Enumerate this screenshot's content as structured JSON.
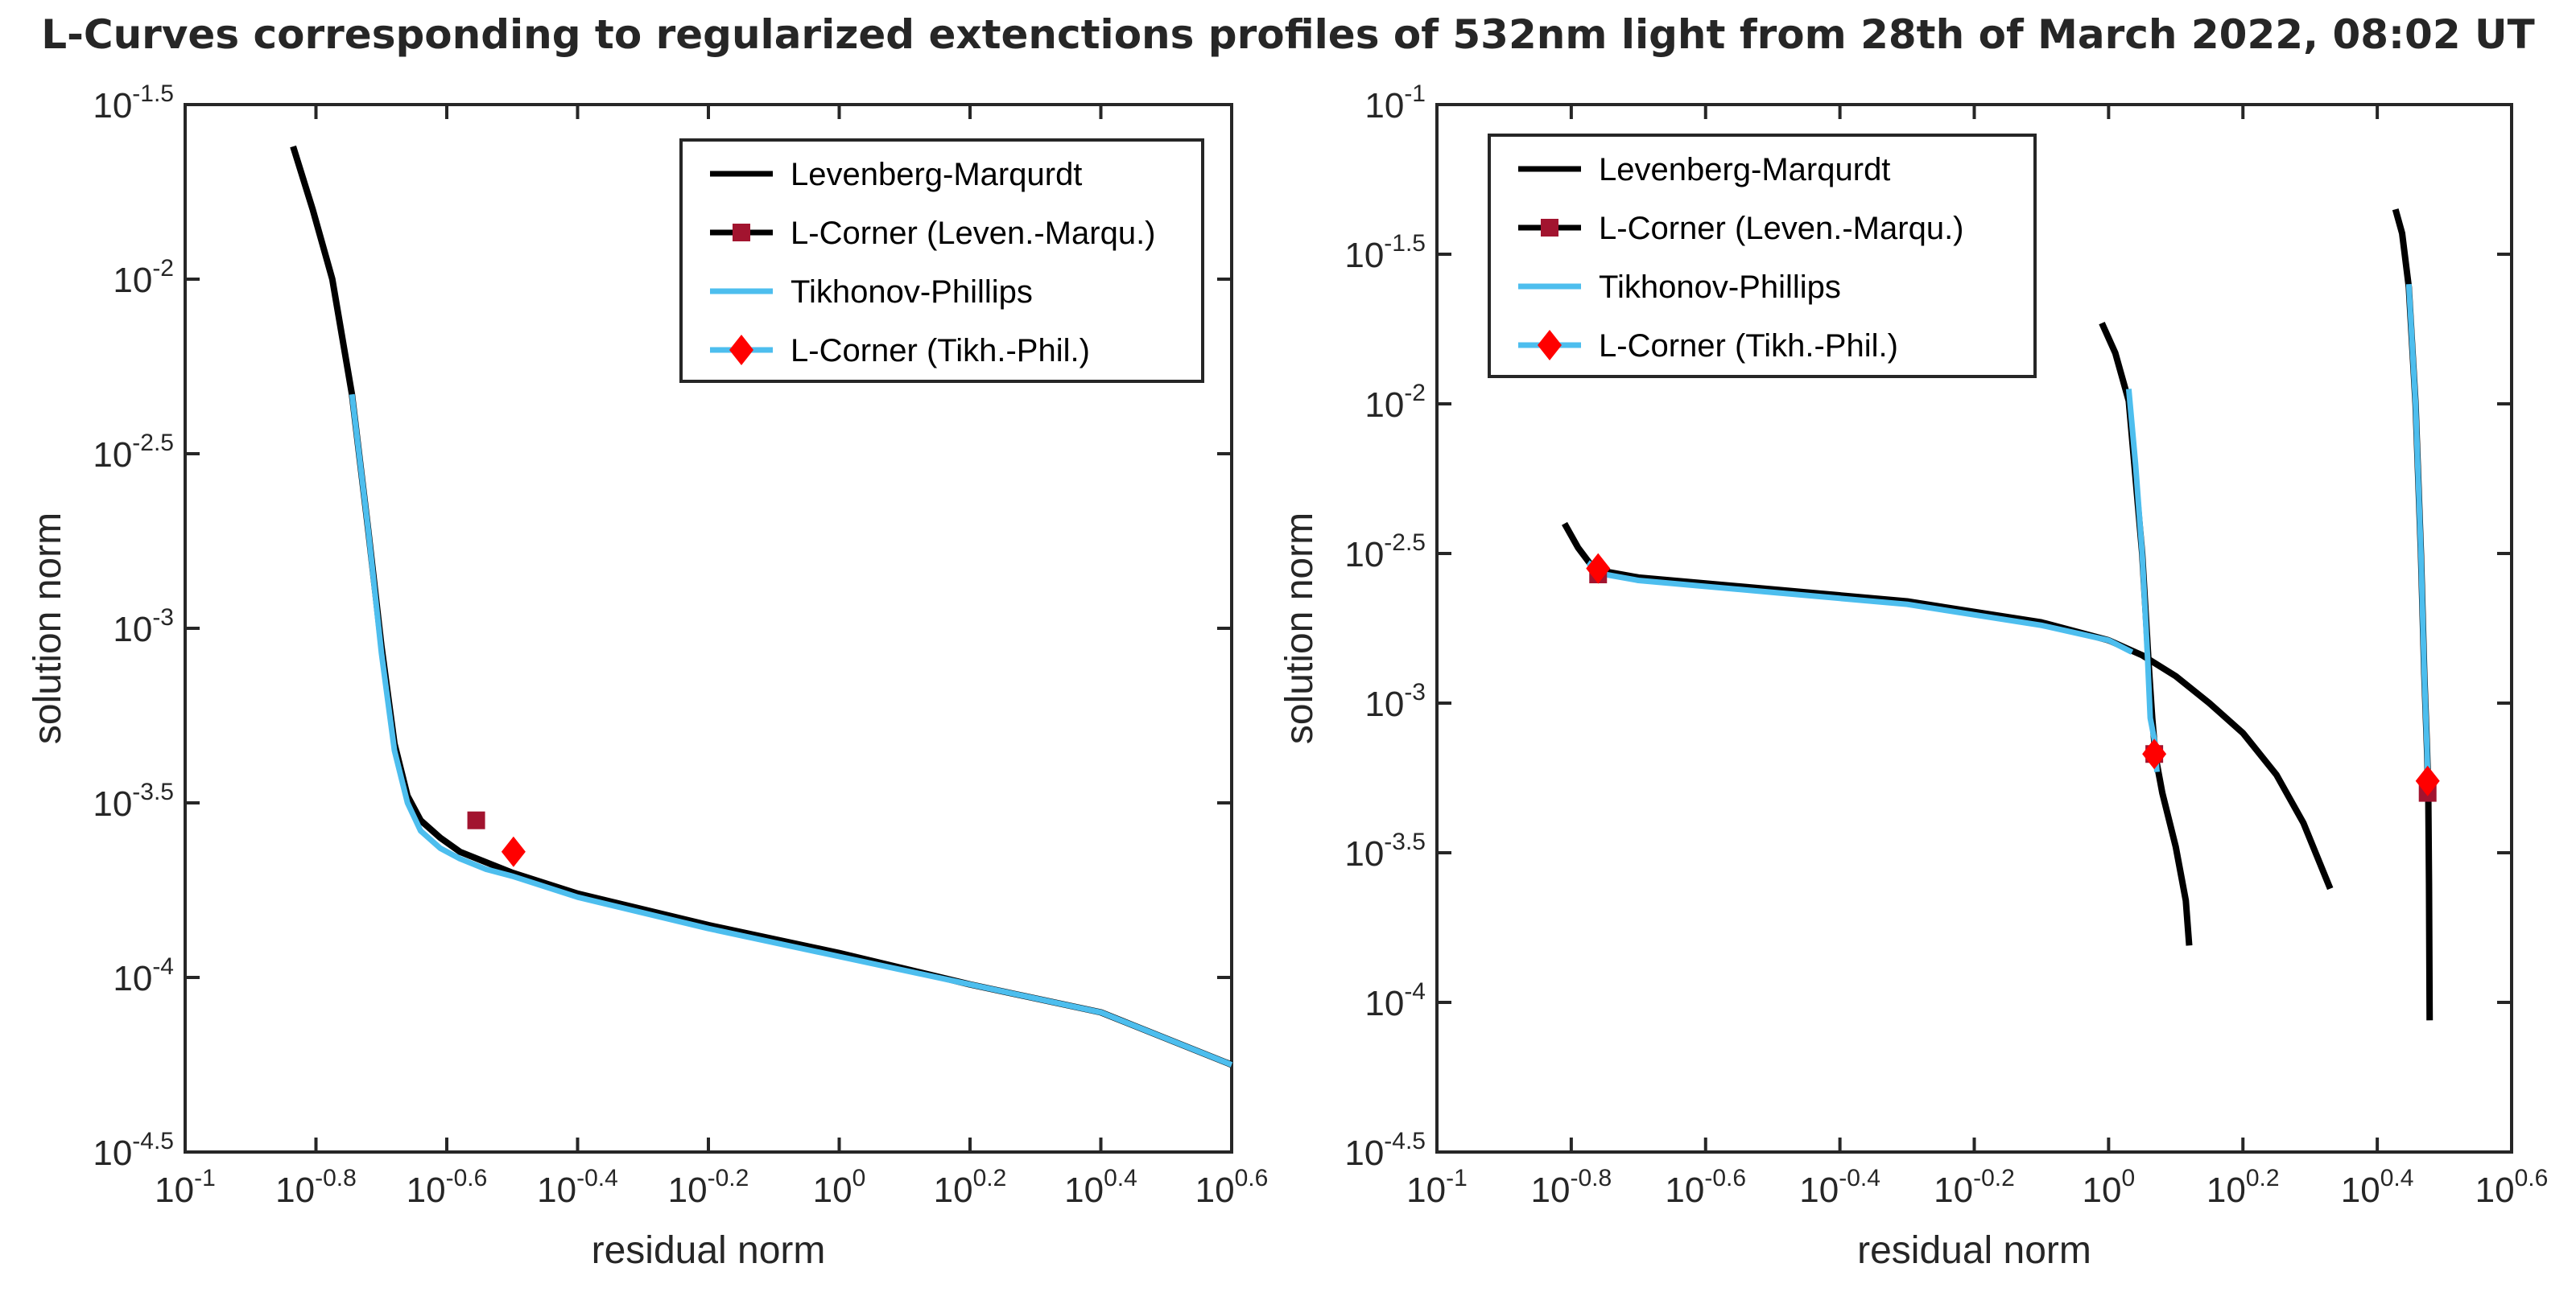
{
  "figure_title": "L-Curves corresponding to regularized extenctions profiles of 532nm light from 28th of March 2022, 08:02 UT",
  "colors": {
    "levenberg_marquardt": "#000000",
    "lcorner_levmar": "#a2142f",
    "tikhonov_phillips": "#4dbeee",
    "lcorner_tikh": "#ff0000",
    "axes": "#262626"
  },
  "chart_data": [
    {
      "type": "line",
      "title": "",
      "xlabel": "residual norm",
      "ylabel": "solution norm",
      "xscale": "log",
      "yscale": "log",
      "xlim_log10": [
        -1,
        0.6
      ],
      "ylim_log10": [
        -4.5,
        -1.5
      ],
      "xticks_log10": [
        -1,
        -0.8,
        -0.6,
        -0.4,
        -0.2,
        0,
        0.2,
        0.4,
        0.6
      ],
      "yticks_log10": [
        -4.5,
        -4,
        -3.5,
        -3,
        -2.5,
        -2,
        -1.5
      ],
      "xtick_labels": [
        {
          "base": "10",
          "exp": "-1"
        },
        {
          "base": "10",
          "exp": "-0.8"
        },
        {
          "base": "10",
          "exp": "-0.6"
        },
        {
          "base": "10",
          "exp": "-0.4"
        },
        {
          "base": "10",
          "exp": "-0.2"
        },
        {
          "base": "10",
          "exp": "0"
        },
        {
          "base": "10",
          "exp": "0.2"
        },
        {
          "base": "10",
          "exp": "0.4"
        },
        {
          "base": "10",
          "exp": "0.6"
        }
      ],
      "ytick_labels": [
        {
          "base": "10",
          "exp": "-4.5"
        },
        {
          "base": "10",
          "exp": "-4"
        },
        {
          "base": "10",
          "exp": "-3.5"
        },
        {
          "base": "10",
          "exp": "-3"
        },
        {
          "base": "10",
          "exp": "-2.5"
        },
        {
          "base": "10",
          "exp": "-2"
        },
        {
          "base": "10",
          "exp": "-1.5"
        }
      ],
      "legend": {
        "placement": "top-right",
        "entries": [
          {
            "label": "Levenberg-Marqurdt",
            "style": "line",
            "color": "#000000"
          },
          {
            "label": "L-Corner (Leven.-Marqu.)",
            "style": "line-square",
            "color": "#a2142f"
          },
          {
            "label": "Tikhonov-Phillips",
            "style": "line",
            "color": "#4dbeee"
          },
          {
            "label": "L-Corner (Tikh.-Phil.)",
            "style": "line-diamond",
            "color": "#ff0000"
          }
        ]
      },
      "series": [
        {
          "name": "Levenberg-Marqurdt",
          "color": "#000000",
          "curves": [
            [
              [
                -0.835,
                -1.62
              ],
              [
                -0.805,
                -1.8
              ],
              [
                -0.775,
                -2.0
              ],
              [
                -0.745,
                -2.33
              ],
              [
                -0.72,
                -2.72
              ],
              [
                -0.7,
                -3.05
              ],
              [
                -0.68,
                -3.33
              ],
              [
                -0.66,
                -3.48
              ],
              [
                -0.64,
                -3.55
              ],
              [
                -0.61,
                -3.6
              ],
              [
                -0.58,
                -3.64
              ],
              [
                -0.54,
                -3.67
              ],
              [
                -0.5,
                -3.7
              ],
              [
                -0.4,
                -3.76
              ],
              [
                -0.2,
                -3.85
              ],
              [
                0,
                -3.93
              ],
              [
                0.2,
                -4.02
              ],
              [
                0.4,
                -4.1
              ],
              [
                0.6,
                -4.25
              ]
            ]
          ]
        },
        {
          "name": "Tikhonov-Phillips",
          "color": "#4dbeee",
          "curves": [
            [
              [
                -0.745,
                -2.33
              ],
              [
                -0.72,
                -2.72
              ],
              [
                -0.7,
                -3.07
              ],
              [
                -0.68,
                -3.35
              ],
              [
                -0.66,
                -3.5
              ],
              [
                -0.64,
                -3.58
              ],
              [
                -0.61,
                -3.63
              ],
              [
                -0.58,
                -3.66
              ],
              [
                -0.54,
                -3.69
              ],
              [
                -0.5,
                -3.71
              ],
              [
                -0.4,
                -3.77
              ],
              [
                -0.2,
                -3.86
              ],
              [
                0,
                -3.94
              ],
              [
                0.2,
                -4.02
              ],
              [
                0.4,
                -4.1
              ],
              [
                0.6,
                -4.25
              ]
            ]
          ]
        }
      ],
      "markers": [
        {
          "series": "L-Corner (Leven.-Marqu.)",
          "shape": "square",
          "color": "#a2142f",
          "x": -0.555,
          "y": -3.55
        },
        {
          "series": "L-Corner (Tikh.-Phil.)",
          "shape": "diamond",
          "color": "#ff0000",
          "x": -0.498,
          "y": -3.64
        }
      ]
    },
    {
      "type": "line",
      "title": "",
      "xlabel": "residual norm",
      "ylabel": "solution norm",
      "xscale": "log",
      "yscale": "log",
      "xlim_log10": [
        -1,
        0.6
      ],
      "ylim_log10": [
        -4.5,
        -1
      ],
      "xticks_log10": [
        -1,
        -0.8,
        -0.6,
        -0.4,
        -0.2,
        0,
        0.2,
        0.4,
        0.6
      ],
      "yticks_log10": [
        -4.5,
        -4,
        -3.5,
        -3,
        -2.5,
        -2,
        -1.5,
        -1
      ],
      "xtick_labels": [
        {
          "base": "10",
          "exp": "-1"
        },
        {
          "base": "10",
          "exp": "-0.8"
        },
        {
          "base": "10",
          "exp": "-0.6"
        },
        {
          "base": "10",
          "exp": "-0.4"
        },
        {
          "base": "10",
          "exp": "-0.2"
        },
        {
          "base": "10",
          "exp": "0"
        },
        {
          "base": "10",
          "exp": "0.2"
        },
        {
          "base": "10",
          "exp": "0.4"
        },
        {
          "base": "10",
          "exp": "0.6"
        }
      ],
      "ytick_labels": [
        {
          "base": "10",
          "exp": "-4.5"
        },
        {
          "base": "10",
          "exp": "-4"
        },
        {
          "base": "10",
          "exp": "-3.5"
        },
        {
          "base": "10",
          "exp": "-3"
        },
        {
          "base": "10",
          "exp": "-2.5"
        },
        {
          "base": "10",
          "exp": "-2"
        },
        {
          "base": "10",
          "exp": "-1.5"
        },
        {
          "base": "10",
          "exp": "-1"
        }
      ],
      "legend": {
        "placement": "top-left",
        "entries": [
          {
            "label": "Levenberg-Marqurdt",
            "style": "line",
            "color": "#000000"
          },
          {
            "label": "L-Corner (Leven.-Marqu.)",
            "style": "line-square",
            "color": "#a2142f"
          },
          {
            "label": "Tikhonov-Phillips",
            "style": "line",
            "color": "#4dbeee"
          },
          {
            "label": "L-Corner (Tikh.-Phil.)",
            "style": "line-diamond",
            "color": "#ff0000"
          }
        ]
      },
      "series": [
        {
          "name": "Levenberg-Marqurdt",
          "color": "#000000",
          "curves": [
            [
              [
                -0.81,
                -2.4
              ],
              [
                -0.79,
                -2.48
              ],
              [
                -0.77,
                -2.54
              ],
              [
                -0.75,
                -2.56
              ],
              [
                -0.7,
                -2.58
              ],
              [
                -0.5,
                -2.62
              ],
              [
                -0.3,
                -2.66
              ],
              [
                -0.1,
                -2.73
              ],
              [
                0,
                -2.79
              ],
              [
                0.05,
                -2.84
              ],
              [
                0.1,
                -2.91
              ],
              [
                0.15,
                -3.0
              ],
              [
                0.2,
                -3.1
              ],
              [
                0.25,
                -3.24
              ],
              [
                0.29,
                -3.4
              ],
              [
                0.33,
                -3.62
              ]
            ],
            [
              [
                -0.01,
                -1.73
              ],
              [
                0.01,
                -1.83
              ],
              [
                0.03,
                -1.99
              ],
              [
                0.05,
                -2.5
              ],
              [
                0.06,
                -2.88
              ],
              [
                0.065,
                -3.05
              ],
              [
                0.07,
                -3.18
              ],
              [
                0.08,
                -3.3
              ],
              [
                0.1,
                -3.48
              ],
              [
                0.115,
                -3.66
              ],
              [
                0.12,
                -3.81
              ]
            ],
            [
              [
                0.427,
                -1.35
              ],
              [
                0.437,
                -1.43
              ],
              [
                0.447,
                -1.61
              ],
              [
                0.457,
                -2.0
              ],
              [
                0.465,
                -2.5
              ],
              [
                0.47,
                -2.9
              ],
              [
                0.474,
                -3.15
              ],
              [
                0.476,
                -3.3
              ],
              [
                0.477,
                -3.6
              ],
              [
                0.478,
                -4.06
              ]
            ]
          ]
        },
        {
          "name": "Tikhonov-Phillips",
          "color": "#4dbeee",
          "curves": [
            [
              [
                -0.775,
                -2.53
              ],
              [
                -0.75,
                -2.57
              ],
              [
                -0.7,
                -2.59
              ],
              [
                -0.5,
                -2.63
              ],
              [
                -0.3,
                -2.67
              ],
              [
                -0.1,
                -2.74
              ],
              [
                0,
                -2.79
              ],
              [
                0.035,
                -2.83
              ]
            ],
            [
              [
                0.03,
                -1.95
              ],
              [
                0.04,
                -2.2
              ],
              [
                0.05,
                -2.5
              ],
              [
                0.058,
                -2.85
              ],
              [
                0.062,
                -3.05
              ],
              [
                0.068,
                -3.12
              ],
              [
                0.072,
                -3.23
              ]
            ],
            [
              [
                0.447,
                -1.6
              ],
              [
                0.457,
                -2.0
              ],
              [
                0.465,
                -2.5
              ],
              [
                0.47,
                -2.9
              ],
              [
                0.474,
                -3.15
              ],
              [
                0.476,
                -3.32
              ]
            ]
          ]
        }
      ],
      "markers": [
        {
          "series": "L-Corner (Leven.-Marqu.)",
          "shape": "square",
          "color": "#a2142f",
          "x": -0.76,
          "y": -2.57
        },
        {
          "series": "L-Corner (Leven.-Marqu.)",
          "shape": "square",
          "color": "#a2142f",
          "x": 0.068,
          "y": -3.17
        },
        {
          "series": "L-Corner (Leven.-Marqu.)",
          "shape": "square",
          "color": "#a2142f",
          "x": 0.475,
          "y": -3.3
        },
        {
          "series": "L-Corner (Tikh.-Phil.)",
          "shape": "diamond",
          "color": "#ff0000",
          "x": -0.76,
          "y": -2.55
        },
        {
          "series": "L-Corner (Tikh.-Phil.)",
          "shape": "diamond",
          "color": "#ff0000",
          "x": 0.068,
          "y": -3.17
        },
        {
          "series": "L-Corner (Tikh.-Phil.)",
          "shape": "diamond",
          "color": "#ff0000",
          "x": 0.475,
          "y": -3.26
        }
      ]
    }
  ]
}
